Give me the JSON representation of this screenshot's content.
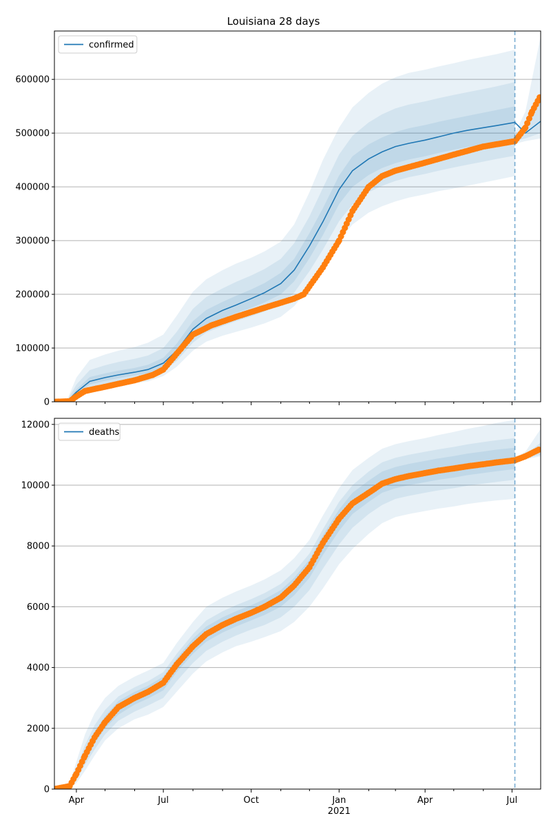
{
  "figure_title": "Louisiana 28 days",
  "chart_data": [
    {
      "type": "line",
      "name": "confirmed",
      "legend": [
        "confirmed"
      ],
      "legend_placement": "upper-left",
      "grid": "y",
      "xlim": [
        "2020-03-09",
        "2021-07-31"
      ],
      "ylim": [
        0,
        690000
      ],
      "yticks": [
        0,
        100000,
        200000,
        300000,
        400000,
        500000,
        600000
      ],
      "forecast_start": "2021-07-04",
      "series": [
        {
          "name": "confirmed",
          "kind": "model-median",
          "color": "#1f77b4",
          "x": [
            "2020-03-09",
            "2020-03-23",
            "2020-04-01",
            "2020-04-15",
            "2020-05-01",
            "2020-05-15",
            "2020-06-01",
            "2020-06-15",
            "2020-07-01",
            "2020-07-15",
            "2020-08-01",
            "2020-08-15",
            "2020-09-01",
            "2020-09-15",
            "2020-10-01",
            "2020-10-15",
            "2020-11-01",
            "2020-11-15",
            "2020-12-01",
            "2020-12-15",
            "2021-01-01",
            "2021-01-15",
            "2021-02-01",
            "2021-02-15",
            "2021-03-01",
            "2021-03-15",
            "2021-04-01",
            "2021-04-15",
            "2021-05-01",
            "2021-05-15",
            "2021-06-01",
            "2021-06-15",
            "2021-07-04",
            "2021-07-15",
            "2021-07-31"
          ],
          "y": [
            0,
            2000,
            18000,
            38000,
            45000,
            50000,
            55000,
            60000,
            72000,
            95000,
            135000,
            155000,
            170000,
            180000,
            192000,
            203000,
            220000,
            245000,
            290000,
            335000,
            395000,
            430000,
            452000,
            465000,
            475000,
            481000,
            487000,
            493000,
            500000,
            505000,
            510000,
            514000,
            520000,
            500000,
            522000
          ]
        },
        {
          "name": "observed confirmed",
          "kind": "observed",
          "color": "#ff7f0e",
          "x": [
            "2020-03-09",
            "2020-03-25",
            "2020-04-01",
            "2020-04-10",
            "2020-05-01",
            "2020-06-01",
            "2020-06-20",
            "2020-07-01",
            "2020-07-20",
            "2020-08-01",
            "2020-08-20",
            "2020-09-15",
            "2020-10-15",
            "2020-11-15",
            "2020-11-25",
            "2020-12-15",
            "2021-01-01",
            "2021-01-15",
            "2021-02-01",
            "2021-02-15",
            "2021-03-01",
            "2021-04-01",
            "2021-05-01",
            "2021-06-01",
            "2021-07-04",
            "2021-07-15",
            "2021-07-22",
            "2021-07-31"
          ],
          "y": [
            0,
            1000,
            10000,
            20000,
            28000,
            40000,
            50000,
            60000,
            100000,
            125000,
            142000,
            158000,
            175000,
            192000,
            200000,
            250000,
            300000,
            355000,
            400000,
            420000,
            430000,
            445000,
            460000,
            475000,
            485000,
            510000,
            540000,
            570000
          ]
        }
      ],
      "bands": {
        "x": [
          "2020-03-09",
          "2020-03-23",
          "2020-04-01",
          "2020-04-15",
          "2020-05-01",
          "2020-05-15",
          "2020-06-01",
          "2020-06-15",
          "2020-07-01",
          "2020-07-15",
          "2020-08-01",
          "2020-08-15",
          "2020-09-01",
          "2020-09-15",
          "2020-10-01",
          "2020-10-15",
          "2020-11-01",
          "2020-11-15",
          "2020-12-01",
          "2020-12-15",
          "2021-01-01",
          "2021-01-15",
          "2021-02-01",
          "2021-02-15",
          "2021-03-01",
          "2021-03-15",
          "2021-04-01",
          "2021-04-15",
          "2021-05-01",
          "2021-05-15",
          "2021-06-01",
          "2021-06-15",
          "2021-07-04"
        ],
        "outer": {
          "lower": [
            0,
            0,
            10000,
            20000,
            27000,
            31000,
            35000,
            38000,
            48000,
            65000,
            95000,
            112000,
            123000,
            130000,
            138000,
            146000,
            158000,
            178000,
            212000,
            250000,
            300000,
            330000,
            352000,
            364000,
            373000,
            380000,
            386000,
            392000,
            397000,
            402000,
            408000,
            413000,
            420000
          ],
          "upper": [
            0,
            6000,
            45000,
            78000,
            88000,
            95000,
            102000,
            110000,
            125000,
            160000,
            205000,
            228000,
            245000,
            257000,
            268000,
            280000,
            298000,
            330000,
            390000,
            450000,
            510000,
            548000,
            575000,
            592000,
            604000,
            612000,
            618000,
            624000,
            630000,
            636000,
            642000,
            647000,
            655000
          ]
        },
        "middle": {
          "lower": [
            0,
            0,
            12000,
            27000,
            34000,
            38000,
            42000,
            46000,
            57000,
            76000,
            110000,
            129000,
            141000,
            150000,
            159000,
            168000,
            181000,
            203000,
            243000,
            283000,
            336000,
            367000,
            390000,
            402000,
            411000,
            418000,
            424000,
            430000,
            436000,
            441000,
            447000,
            452000,
            458000
          ],
          "upper": [
            0,
            4500,
            32000,
            59000,
            68000,
            74000,
            80000,
            86000,
            100000,
            130000,
            173000,
            195000,
            211000,
            223000,
            235000,
            247000,
            266000,
            295000,
            345000,
            398000,
            460000,
            495000,
            520000,
            535000,
            546000,
            553000,
            559000,
            565000,
            571000,
            576000,
            582000,
            587000,
            595000
          ]
        },
        "inner": {
          "lower": [
            0,
            0,
            15000,
            32000,
            39000,
            44000,
            49000,
            53000,
            64000,
            85000,
            121000,
            141000,
            155000,
            165000,
            175000,
            185000,
            200000,
            224000,
            267000,
            310000,
            368000,
            400000,
            422000,
            435000,
            444000,
            451000,
            457000,
            463000,
            469000,
            474000,
            479000,
            483000,
            488000
          ],
          "upper": [
            0,
            3000,
            23000,
            46000,
            53000,
            58000,
            63000,
            69000,
            82000,
            108000,
            150000,
            171000,
            186000,
            197000,
            209000,
            221000,
            240000,
            266000,
            314000,
            360000,
            421000,
            457000,
            479000,
            492000,
            502000,
            509000,
            515000,
            521000,
            527000,
            532000,
            538000,
            543000,
            550000
          ]
        }
      },
      "extension_bands": {
        "x": [
          "2021-07-04",
          "2021-07-15",
          "2021-07-31"
        ],
        "outer": {
          "lower": [
            480000,
            485000,
            490000
          ],
          "upper": [
            500000,
            540000,
            680000
          ]
        },
        "inner": {
          "lower": [
            485000,
            490000,
            500000
          ],
          "upper": [
            495000,
            515000,
            570000
          ]
        }
      }
    },
    {
      "type": "line",
      "name": "deaths",
      "legend": [
        "deaths"
      ],
      "legend_placement": "upper-left",
      "grid": "y",
      "xlim": [
        "2020-03-09",
        "2021-07-31"
      ],
      "ylim": [
        0,
        12200
      ],
      "yticks": [
        0,
        2000,
        4000,
        6000,
        8000,
        10000,
        12000
      ],
      "xticks": [
        "Apr",
        "Jul",
        "Oct",
        "Jan",
        "Apr",
        "Jul"
      ],
      "xtick_dates": [
        "2020-04-01",
        "2020-07-01",
        "2020-10-01",
        "2021-01-01",
        "2021-04-01",
        "2021-07-01"
      ],
      "x_sublabel": "2021",
      "forecast_start": "2021-07-04",
      "series": [
        {
          "name": "deaths",
          "kind": "model-median",
          "color": "#1f77b4",
          "x": [],
          "y": []
        },
        {
          "name": "observed deaths",
          "kind": "observed",
          "color": "#ff7f0e",
          "x": [
            "2020-03-09",
            "2020-03-25",
            "2020-04-01",
            "2020-04-10",
            "2020-04-20",
            "2020-05-01",
            "2020-05-15",
            "2020-06-01",
            "2020-06-15",
            "2020-07-01",
            "2020-07-15",
            "2020-08-01",
            "2020-08-15",
            "2020-09-01",
            "2020-09-15",
            "2020-10-01",
            "2020-10-15",
            "2020-11-01",
            "2020-11-15",
            "2020-12-01",
            "2020-12-15",
            "2021-01-01",
            "2021-01-15",
            "2021-02-01",
            "2021-02-15",
            "2021-03-01",
            "2021-03-15",
            "2021-04-01",
            "2021-04-15",
            "2021-05-01",
            "2021-05-15",
            "2021-06-01",
            "2021-06-15",
            "2021-07-04",
            "2021-07-15",
            "2021-07-31"
          ],
          "y": [
            0,
            100,
            500,
            1100,
            1700,
            2200,
            2700,
            3000,
            3200,
            3500,
            4100,
            4700,
            5100,
            5400,
            5600,
            5800,
            6000,
            6300,
            6700,
            7300,
            8100,
            8900,
            9400,
            9750,
            10050,
            10200,
            10300,
            10400,
            10480,
            10550,
            10620,
            10690,
            10750,
            10820,
            10950,
            11200
          ]
        }
      ],
      "bands": {
        "x": [
          "2020-03-09",
          "2020-03-25",
          "2020-04-01",
          "2020-04-10",
          "2020-04-20",
          "2020-05-01",
          "2020-05-15",
          "2020-06-01",
          "2020-06-15",
          "2020-07-01",
          "2020-07-15",
          "2020-08-01",
          "2020-08-15",
          "2020-09-01",
          "2020-09-15",
          "2020-10-01",
          "2020-10-15",
          "2020-11-01",
          "2020-11-15",
          "2020-12-01",
          "2020-12-15",
          "2021-01-01",
          "2021-01-15",
          "2021-02-01",
          "2021-02-15",
          "2021-03-01",
          "2021-03-15",
          "2021-04-01",
          "2021-04-15",
          "2021-05-01",
          "2021-05-15",
          "2021-06-01",
          "2021-06-15",
          "2021-07-04"
        ],
        "outer": {
          "lower": [
            0,
            50,
            200,
            600,
            1100,
            1600,
            2000,
            2300,
            2450,
            2700,
            3200,
            3800,
            4200,
            4500,
            4700,
            4850,
            5000,
            5200,
            5500,
            6000,
            6600,
            7400,
            7900,
            8400,
            8750,
            8950,
            9050,
            9150,
            9230,
            9300,
            9380,
            9450,
            9500,
            9550
          ],
          "upper": [
            0,
            200,
            900,
            1800,
            2500,
            3000,
            3400,
            3700,
            3900,
            4150,
            4800,
            5500,
            6000,
            6300,
            6500,
            6700,
            6900,
            7200,
            7600,
            8200,
            9000,
            9900,
            10500,
            10900,
            11200,
            11350,
            11450,
            11550,
            11650,
            11750,
            11850,
            11950,
            12050,
            12150
          ]
        },
        "middle": {
          "lower": [
            0,
            70,
            300,
            800,
            1300,
            1800,
            2250,
            2550,
            2750,
            3000,
            3550,
            4150,
            4550,
            4850,
            5050,
            5250,
            5400,
            5650,
            6000,
            6550,
            7250,
            8050,
            8600,
            9050,
            9350,
            9550,
            9650,
            9750,
            9830,
            9900,
            9980,
            10050,
            10110,
            10180
          ],
          "upper": [
            0,
            150,
            700,
            1450,
            2100,
            2600,
            3050,
            3350,
            3550,
            3850,
            4450,
            5100,
            5550,
            5850,
            6050,
            6250,
            6450,
            6750,
            7150,
            7750,
            8550,
            9450,
            10000,
            10450,
            10750,
            10900,
            11000,
            11100,
            11180,
            11260,
            11340,
            11420,
            11480,
            11550
          ]
        },
        "inner": {
          "lower": [
            0,
            85,
            400,
            950,
            1500,
            2000,
            2450,
            2780,
            2980,
            3250,
            3850,
            4450,
            4850,
            5150,
            5350,
            5550,
            5730,
            6000,
            6380,
            6950,
            7700,
            8500,
            9050,
            9450,
            9750,
            9900,
            10000,
            10100,
            10180,
            10250,
            10330,
            10400,
            10460,
            10530
          ],
          "upper": [
            0,
            120,
            600,
            1250,
            1900,
            2400,
            2900,
            3200,
            3400,
            3700,
            4300,
            4950,
            5350,
            5650,
            5850,
            6050,
            6250,
            6550,
            6950,
            7550,
            8350,
            9200,
            9750,
            10150,
            10450,
            10600,
            10700,
            10800,
            10880,
            10960,
            11040,
            11110,
            11170,
            11230
          ]
        }
      },
      "extension_bands": {
        "x": [
          "2021-07-04",
          "2021-07-15",
          "2021-07-31"
        ],
        "outer": {
          "lower": [
            10750,
            10850,
            10950
          ],
          "upper": [
            10900,
            11100,
            11850
          ]
        },
        "inner": {
          "lower": [
            10780,
            10880,
            11000
          ],
          "upper": [
            10850,
            11000,
            11400
          ]
        }
      }
    }
  ],
  "colors": {
    "band": "#1f77b4",
    "median": "#1f77b4",
    "observed": "#ff7f0e",
    "grid": "#b0b0b0",
    "forecast_line": "#1f77b4"
  }
}
